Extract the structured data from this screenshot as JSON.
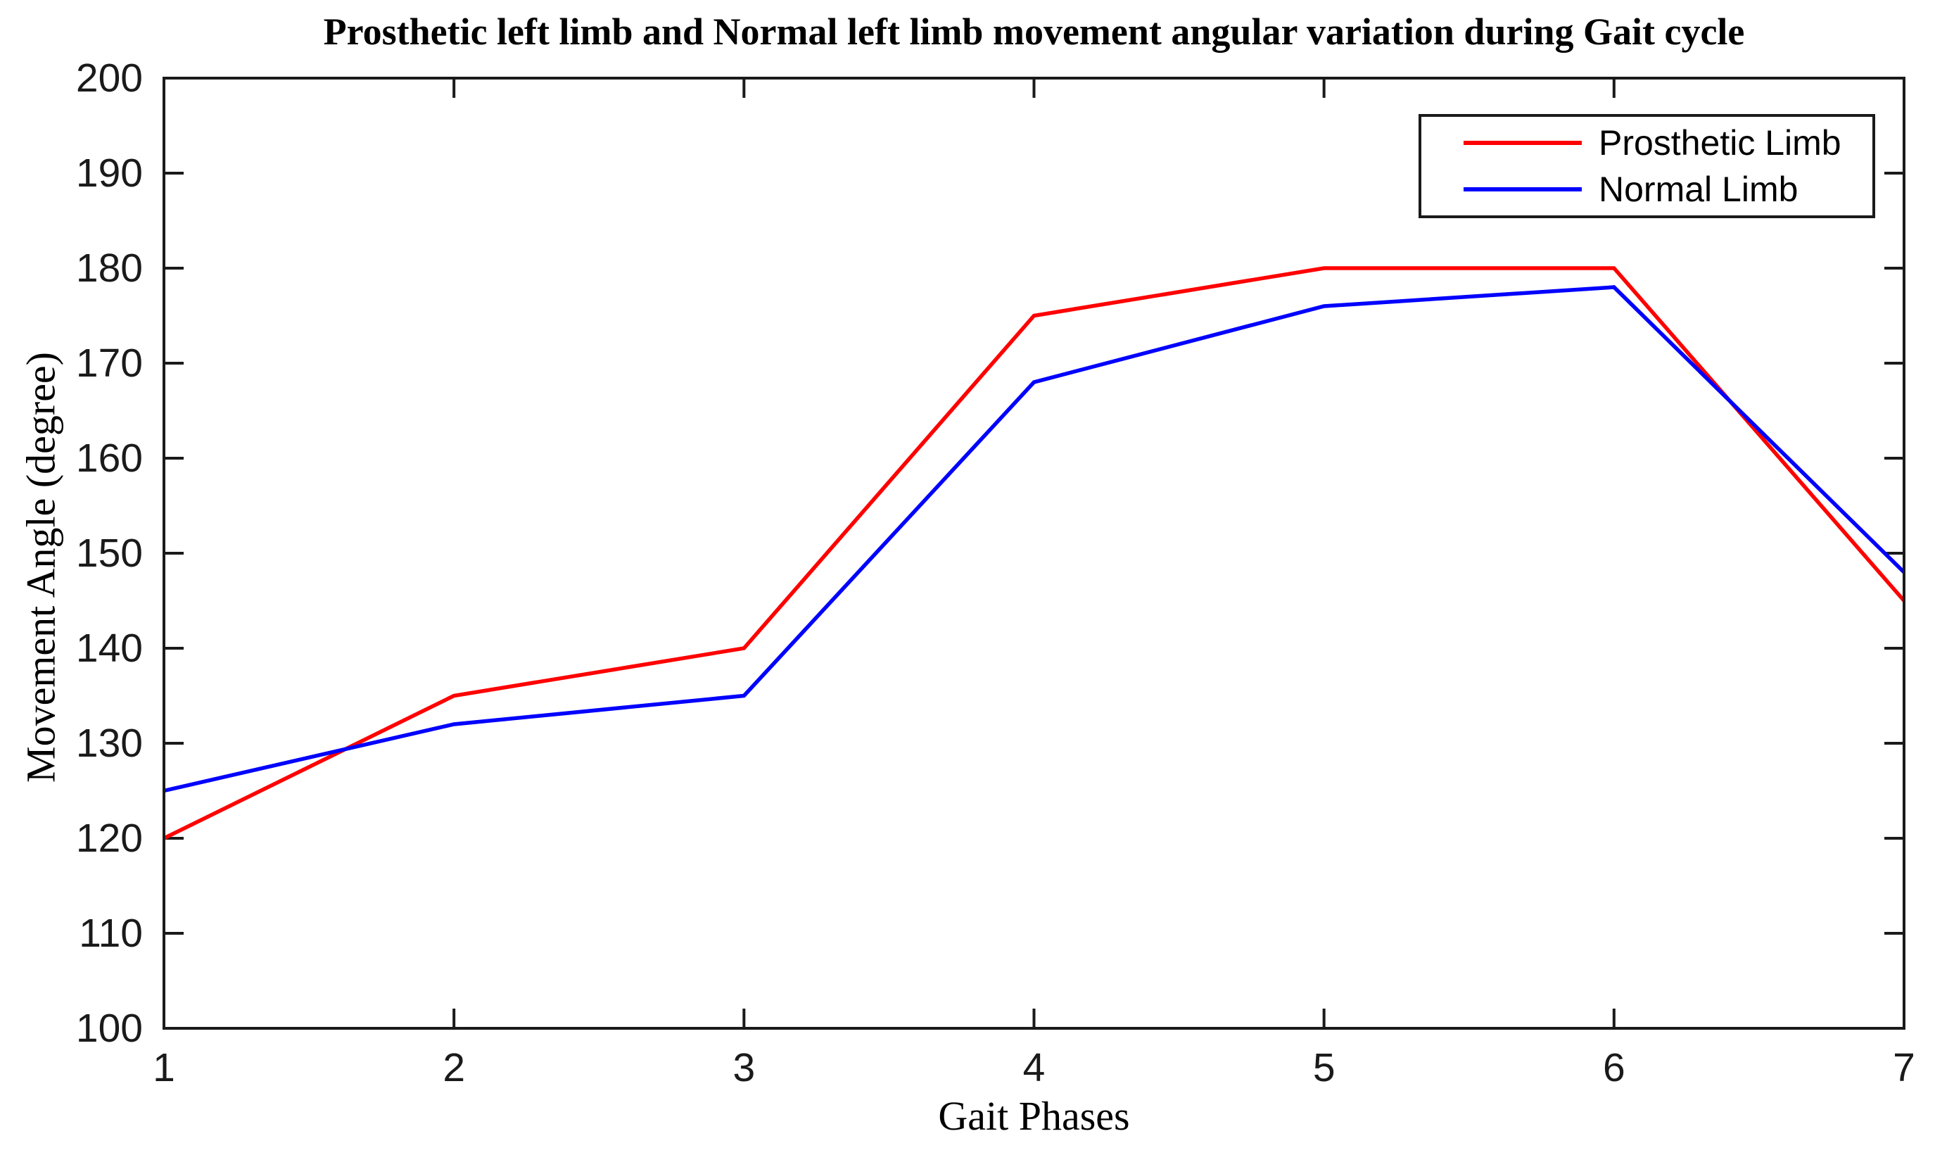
{
  "chart_data": {
    "type": "line",
    "title": "Prosthetic left limb and Normal left limb movement angular variation during Gait cycle",
    "xlabel": "Gait Phases",
    "ylabel": "Movement Angle (degree)",
    "x": [
      1,
      2,
      3,
      4,
      5,
      6,
      7
    ],
    "series": [
      {
        "name": "Prosthetic Limb",
        "color": "#ff0000",
        "values": [
          120,
          135,
          140,
          175,
          180,
          180,
          145
        ]
      },
      {
        "name": "Normal Limb",
        "color": "#0000ff",
        "values": [
          125,
          132,
          135,
          168,
          176,
          178,
          148
        ]
      }
    ],
    "xlim": [
      1,
      7
    ],
    "ylim": [
      100,
      200
    ],
    "xticks": [
      1,
      2,
      3,
      4,
      5,
      6,
      7
    ],
    "yticks": [
      100,
      110,
      120,
      130,
      140,
      150,
      160,
      170,
      180,
      190,
      200
    ],
    "grid": false,
    "legend_position": "top-right",
    "axis_color": "#1a1a1a",
    "box": true
  }
}
